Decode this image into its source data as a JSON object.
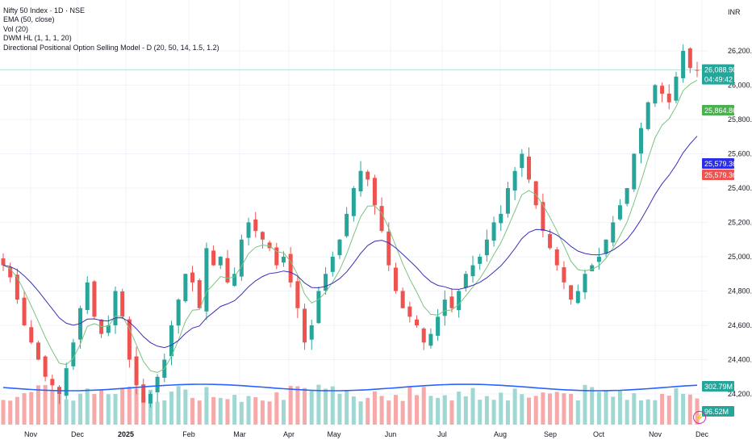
{
  "legend": {
    "title": "Nifty 50 Index · 1D · NSE",
    "ema": "EMA (50, close)",
    "vol": "Vol (20)",
    "dwm": "DWM HL (1, 1, 1, 20)",
    "model": "Directional Positional Option Selling Model - D (20, 50, 14, 1.5, 1.2)"
  },
  "currency": "INR",
  "colors": {
    "up": "#26a69a",
    "down": "#ef5350",
    "vol_up": "#9fd8d2",
    "vol_down": "#f6a9a8",
    "ema50": "#3a2fb8",
    "fast_ma": "#7cc47f",
    "vol_ma": "#2962ff",
    "hline": "#b7e3dd"
  },
  "badges": {
    "last": "26,088.90",
    "countdown": "04:49:42",
    "fast_ma": "25,864.86",
    "ema_a": "25,579.36",
    "ema_b": "25,579.36",
    "vol": "302.79M",
    "vol_ma": "96.52M"
  },
  "chart_data": {
    "type": "candlestick",
    "title": "Nifty 50 Index · 1D · NSE",
    "y_ticks": [
      "26,200.00",
      "26,000.00",
      "25,800.00",
      "25,600.00",
      "25,400.00",
      "25,200.00",
      "25,000.00",
      "24,800.00",
      "24,600.00",
      "24,400.00",
      "24,200.00"
    ],
    "y_tick_values": [
      26200,
      26000,
      25800,
      25600,
      25400,
      25200,
      25000,
      24800,
      24600,
      24400,
      24200
    ],
    "ylim": [
      24160,
      26320
    ],
    "x_ticks": [
      "Nov",
      "Dec",
      "2025",
      "Feb",
      "Mar",
      "Apr",
      "May",
      "Jun",
      "Jul",
      "Aug",
      "Sep",
      "Oct",
      "Nov",
      "Dec"
    ],
    "series": [
      {
        "name": "Nifty 50 Index",
        "kind": "ohlc",
        "approx_closes": [
          24950,
          24880,
          24750,
          24600,
          24500,
          24400,
          24300,
          24250,
          24200,
          24350,
          24500,
          24700,
          24850,
          24650,
          24550,
          24600,
          24800,
          24650,
          24400,
          24250,
          24150,
          24200,
          24300,
          24400,
          24600,
          24750,
          24900,
          24850,
          24700,
          25050,
          24950,
          25000,
          24850,
          24900,
          25100,
          25200,
          25150,
          25100,
          25050,
          24950,
          25000,
          24850,
          24700,
          24500,
          24600,
          24800,
          24900,
          25000,
          25100,
          25250,
          25400,
          25500,
          25450,
          25300,
          25150,
          24950,
          24800,
          24700,
          24650,
          24600,
          24500,
          24550,
          24650,
          24750,
          24700,
          24800,
          24900,
          24950,
          25000,
          25100,
          25200,
          25250,
          25400,
          25500,
          25600,
          25450,
          25300,
          25150,
          25050,
          24950,
          24850,
          24750,
          24800,
          24900,
          24950,
          25000,
          25100,
          25200,
          25300,
          25400,
          25600,
          25750,
          25900,
          26000,
          25950,
          25900,
          26050,
          26200,
          26100,
          26088.9
        ]
      },
      {
        "name": "EMA (50, close)",
        "kind": "line",
        "last": 25579.36
      },
      {
        "name": "Directional Positional Option Selling Model - D (20, 50, 14, 1.5, 1.2)",
        "kind": "line",
        "last": 25864.86
      },
      {
        "name": "Vol (20)",
        "kind": "volume",
        "last_label": "302.79M"
      }
    ],
    "horizontal_lines": [
      26088.9
    ],
    "grid": true,
    "legend_position": "top-left"
  }
}
